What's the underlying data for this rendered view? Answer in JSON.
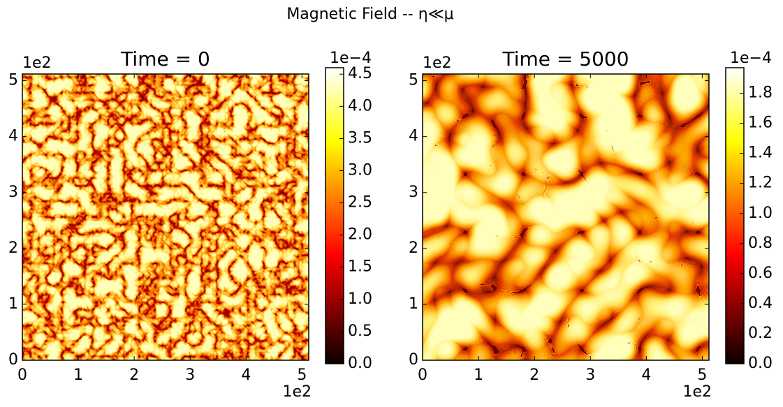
{
  "title": "Magnetic Field -- η≪μ",
  "chart_data": [
    {
      "type": "heatmap",
      "title": "Time = 0",
      "colormap": "hot",
      "xlim": [
        0,
        5.12
      ],
      "ylim": [
        0,
        5.12
      ],
      "xticks": [
        0,
        1,
        2,
        3,
        4,
        5
      ],
      "yticks": [
        0,
        1,
        2,
        3,
        4,
        5
      ],
      "x_offset_label": "1e2",
      "y_offset_label": "1e2",
      "colorbar": {
        "lim": [
          0,
          4.6
        ],
        "offset_label": "1e−4",
        "ticks": [
          {
            "value": 0,
            "label": "0.0"
          },
          0.5,
          {
            "value": 1,
            "label": "1.0"
          },
          1.5,
          {
            "value": 2,
            "label": "2.0"
          },
          2.5,
          {
            "value": 3,
            "label": "3.0"
          },
          3.5,
          {
            "value": 4,
            "label": "4.0"
          },
          4.5
        ]
      }
    },
    {
      "type": "heatmap",
      "title": "Time = 5000",
      "colormap": "hot",
      "xlim": [
        0,
        5.12
      ],
      "ylim": [
        0,
        5.12
      ],
      "xticks": [
        0,
        1,
        2,
        3,
        4,
        5
      ],
      "yticks": [
        0,
        1,
        2,
        3,
        4,
        5
      ],
      "x_offset_label": "1e2",
      "y_offset_label": "1e2",
      "colorbar": {
        "lim": [
          0,
          1.97
        ],
        "offset_label": "1e−4",
        "ticks": [
          {
            "value": 0,
            "label": "0.0"
          },
          0.2,
          0.4,
          0.6,
          0.8,
          {
            "value": 1,
            "label": "1.0"
          },
          1.2,
          1.4,
          1.6,
          1.8
        ]
      }
    }
  ]
}
